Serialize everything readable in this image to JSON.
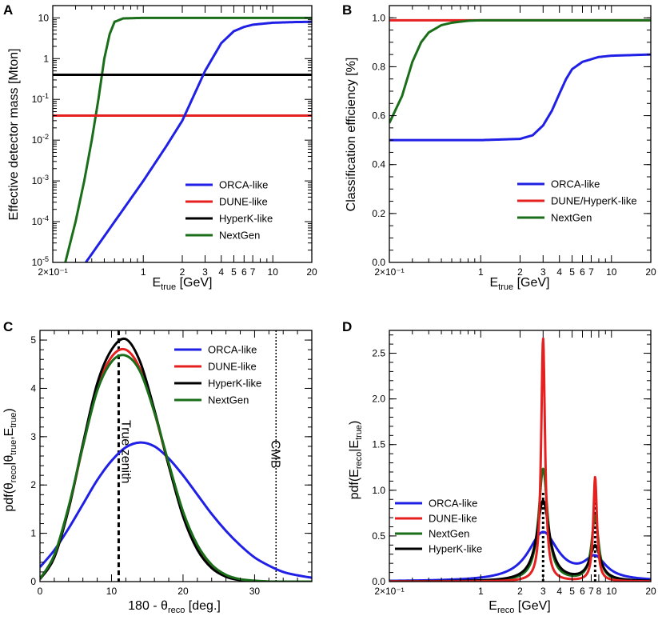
{
  "chart_data": [
    {
      "panel": "A",
      "type": "line",
      "xlabel": "E",
      "xlabel_sub": "true",
      "xlabel_unit": "[GeV]",
      "ylabel": "Effective detector mass [Mton]",
      "xscale": "log",
      "yscale": "log",
      "xlim": [
        0.2,
        20
      ],
      "ylim": [
        1e-05,
        20
      ],
      "x_ticks": [
        {
          "v": 0.2,
          "t": "2×10⁻¹"
        },
        {
          "v": 1,
          "t": "1"
        },
        {
          "v": 2,
          "t": "2"
        },
        {
          "v": 3,
          "t": "3"
        },
        {
          "v": 4,
          "t": "4"
        },
        {
          "v": 5,
          "t": "5"
        },
        {
          "v": 6,
          "t": "6"
        },
        {
          "v": 7,
          "t": "7"
        },
        {
          "v": 10,
          "t": "10"
        },
        {
          "v": 20,
          "t": "20"
        }
      ],
      "y_ticks": [
        {
          "v": 1e-05,
          "b": "10",
          "e": "-5"
        },
        {
          "v": 0.0001,
          "b": "10",
          "e": "-4"
        },
        {
          "v": 0.001,
          "b": "10",
          "e": "-3"
        },
        {
          "v": 0.01,
          "b": "10",
          "e": "-2"
        },
        {
          "v": 0.1,
          "b": "10",
          "e": "-1"
        },
        {
          "v": 1,
          "t": "1"
        },
        {
          "v": 10,
          "t": "10"
        }
      ],
      "legend": {
        "position": "bottom-right",
        "entries": [
          {
            "name": "ORCA-like",
            "color": "#1f1fe6"
          },
          {
            "name": "DUNE-like",
            "color": "#e61f1f"
          },
          {
            "name": "HyperK-like",
            "color": "#000000"
          },
          {
            "name": "NextGen",
            "color": "#1a6e1a"
          }
        ]
      },
      "series": [
        {
          "name": "NextGen",
          "color": "#1a6e1a",
          "x": [
            0.25,
            0.3,
            0.35,
            0.4,
            0.45,
            0.5,
            0.55,
            0.6,
            0.7,
            1,
            2,
            20
          ],
          "y": [
            1e-05,
            0.0001,
            0.001,
            0.01,
            0.1,
            1,
            4,
            8,
            9.7,
            10,
            10,
            10
          ]
        },
        {
          "name": "HyperK-like",
          "color": "#000000",
          "x": [
            0.2,
            20
          ],
          "y": [
            0.4,
            0.4
          ]
        },
        {
          "name": "DUNE-like",
          "color": "#e61f1f",
          "x": [
            0.2,
            20
          ],
          "y": [
            0.04,
            0.04
          ]
        },
        {
          "name": "ORCA-like",
          "color": "#1f1fe6",
          "x": [
            0.36,
            0.7,
            1,
            1.5,
            2,
            3,
            4,
            5,
            6,
            7,
            10,
            15,
            20
          ],
          "y": [
            1e-05,
            0.0002,
            0.001,
            0.007,
            0.03,
            0.5,
            2.4,
            4.7,
            6,
            6.8,
            7.6,
            7.9,
            8
          ]
        }
      ]
    },
    {
      "panel": "B",
      "type": "line",
      "xlabel": "E",
      "xlabel_sub": "true",
      "xlabel_unit": "[GeV]",
      "ylabel": "Classification efficiency [%]",
      "xscale": "log",
      "yscale": "linear",
      "xlim": [
        0.2,
        20
      ],
      "ylim": [
        0,
        1.05
      ],
      "x_ticks": [
        {
          "v": 0.2,
          "t": "2×10⁻¹"
        },
        {
          "v": 1,
          "t": "1"
        },
        {
          "v": 2,
          "t": "2"
        },
        {
          "v": 3,
          "t": "3"
        },
        {
          "v": 4,
          "t": "4"
        },
        {
          "v": 5,
          "t": "5"
        },
        {
          "v": 6,
          "t": "6"
        },
        {
          "v": 7,
          "t": "7"
        },
        {
          "v": 10,
          "t": "10"
        },
        {
          "v": 20,
          "t": "20"
        }
      ],
      "y_ticks": [
        {
          "v": 0,
          "t": "0.0"
        },
        {
          "v": 0.2,
          "t": "0.2"
        },
        {
          "v": 0.4,
          "t": "0.4"
        },
        {
          "v": 0.6,
          "t": "0.6"
        },
        {
          "v": 0.8,
          "t": "0.8"
        },
        {
          "v": 1.0,
          "t": "1.0"
        }
      ],
      "legend": {
        "position": "bottom-right",
        "entries": [
          {
            "name": "ORCA-like",
            "color": "#1f1fe6"
          },
          {
            "name": "DUNE/HyperK-like",
            "color": "#e61f1f"
          },
          {
            "name": "NextGen",
            "color": "#1a6e1a"
          }
        ]
      },
      "series": [
        {
          "name": "DUNE/HyperK-like",
          "color": "#e61f1f",
          "x": [
            0.2,
            20
          ],
          "y": [
            0.99,
            0.99
          ]
        },
        {
          "name": "NextGen",
          "color": "#1a6e1a",
          "x": [
            0.2,
            0.25,
            0.3,
            0.35,
            0.4,
            0.5,
            0.6,
            0.8,
            1,
            2,
            20
          ],
          "y": [
            0.57,
            0.68,
            0.82,
            0.9,
            0.94,
            0.97,
            0.98,
            0.988,
            0.99,
            0.99,
            0.99
          ]
        },
        {
          "name": "ORCA-like",
          "color": "#1f1fe6",
          "x": [
            0.2,
            1,
            2,
            2.5,
            3,
            3.5,
            4,
            4.5,
            5,
            6,
            8,
            10,
            20
          ],
          "y": [
            0.5,
            0.5,
            0.505,
            0.52,
            0.56,
            0.62,
            0.69,
            0.75,
            0.79,
            0.82,
            0.84,
            0.845,
            0.85
          ]
        }
      ]
    },
    {
      "panel": "C",
      "type": "line",
      "xlabel": "180 - θ",
      "xlabel_sub": "reco",
      "xlabel_unit": "[deg.]",
      "ylabel": "pdf(θ",
      "ylabel_sub1": "reco",
      "ylabel_mid": "|θ",
      "ylabel_sub2": "true",
      "ylabel_mid2": ",E",
      "ylabel_sub3": "true",
      "ylabel_end": ")",
      "xscale": "linear",
      "yscale": "linear",
      "xlim": [
        0,
        38
      ],
      "ylim": [
        0,
        5.2
      ],
      "x_ticks": [
        {
          "v": 0,
          "t": "0"
        },
        {
          "v": 10,
          "t": "10"
        },
        {
          "v": 20,
          "t": "20"
        },
        {
          "v": 30,
          "t": "30"
        }
      ],
      "y_ticks": [
        {
          "v": 0,
          "t": "0"
        },
        {
          "v": 1,
          "t": "1"
        },
        {
          "v": 2,
          "t": "2"
        },
        {
          "v": 3,
          "t": "3"
        },
        {
          "v": 4,
          "t": "4"
        },
        {
          "v": 5,
          "t": "5"
        }
      ],
      "legend": {
        "position": "top-right",
        "entries": [
          {
            "name": "ORCA-like",
            "color": "#1f1fe6"
          },
          {
            "name": "DUNE-like",
            "color": "#e61f1f"
          },
          {
            "name": "HyperK-like",
            "color": "#000000"
          },
          {
            "name": "NextGen",
            "color": "#1a6e1a"
          }
        ]
      },
      "annotations": [
        {
          "text": "True zenith",
          "x": 11,
          "style": "dashed-thick"
        },
        {
          "text": "CMB",
          "x": 33,
          "style": "dotted"
        }
      ],
      "series": [
        {
          "name": "ORCA-like",
          "color": "#1f1fe6",
          "x": [
            0,
            2,
            4,
            6,
            8,
            10,
            12,
            14,
            16,
            18,
            20,
            22,
            24,
            26,
            28,
            30,
            32,
            34,
            36,
            38
          ],
          "y": [
            0.3,
            0.65,
            1.1,
            1.6,
            2.1,
            2.5,
            2.78,
            2.88,
            2.8,
            2.55,
            2.2,
            1.8,
            1.4,
            1.05,
            0.75,
            0.5,
            0.33,
            0.2,
            0.13,
            0.08
          ]
        },
        {
          "name": "DUNE-like",
          "color": "#e61f1f",
          "x": [
            0,
            2,
            4,
            6,
            8,
            10,
            12,
            14,
            16,
            18,
            20,
            22,
            24,
            26,
            28,
            30,
            32,
            34,
            36,
            38
          ],
          "y": [
            0.05,
            0.5,
            1.5,
            2.8,
            4.0,
            4.65,
            4.8,
            4.4,
            3.5,
            2.4,
            1.4,
            0.72,
            0.32,
            0.12,
            0.04,
            0.01,
            0,
            0,
            0,
            0
          ]
        },
        {
          "name": "HyperK-like",
          "color": "#000000",
          "x": [
            0,
            2,
            4,
            6,
            8,
            10,
            12,
            14,
            16,
            18,
            20,
            22,
            24,
            26,
            28,
            30,
            32,
            34,
            36,
            38
          ],
          "y": [
            0.05,
            0.5,
            1.5,
            2.85,
            4.1,
            4.8,
            5.02,
            4.55,
            3.55,
            2.4,
            1.35,
            0.66,
            0.28,
            0.1,
            0.03,
            0.01,
            0,
            0,
            0,
            0
          ]
        },
        {
          "name": "NextGen",
          "color": "#1a6e1a",
          "x": [
            0,
            2,
            4,
            6,
            8,
            10,
            12,
            14,
            16,
            18,
            20,
            22,
            24,
            26,
            28,
            30,
            32,
            34,
            36,
            38
          ],
          "y": [
            0.06,
            0.55,
            1.55,
            2.8,
            3.95,
            4.55,
            4.68,
            4.35,
            3.5,
            2.45,
            1.45,
            0.76,
            0.35,
            0.14,
            0.05,
            0.02,
            0,
            0,
            0,
            0
          ]
        }
      ]
    },
    {
      "panel": "D",
      "type": "line",
      "xlabel": "E",
      "xlabel_sub": "reco",
      "xlabel_unit": "[GeV]",
      "ylabel": "pdf(E",
      "ylabel_sub1": "reco",
      "ylabel_mid": "|E",
      "ylabel_sub2": "true",
      "ylabel_end": ")",
      "xscale": "log",
      "yscale": "linear",
      "xlim": [
        0.2,
        20
      ],
      "ylim": [
        0,
        2.75
      ],
      "x_ticks": [
        {
          "v": 0.2,
          "t": "2×10⁻¹"
        },
        {
          "v": 1,
          "t": "1"
        },
        {
          "v": 2,
          "t": "2"
        },
        {
          "v": 3,
          "t": "3"
        },
        {
          "v": 4,
          "t": "4"
        },
        {
          "v": 5,
          "t": "5"
        },
        {
          "v": 6,
          "t": "6"
        },
        {
          "v": 7,
          "t": "7"
        },
        {
          "v": 8,
          "t": "8"
        },
        {
          "v": 10,
          "t": "10"
        },
        {
          "v": 20,
          "t": "20"
        }
      ],
      "y_ticks": [
        {
          "v": 0,
          "t": "0.0"
        },
        {
          "v": 0.5,
          "t": "0.5"
        },
        {
          "v": 1,
          "t": "1.0"
        },
        {
          "v": 1.5,
          "t": "1.5"
        },
        {
          "v": 2,
          "t": "2.0"
        },
        {
          "v": 2.5,
          "t": "2.5"
        }
      ],
      "legend": {
        "position": "middle-left",
        "entries": [
          {
            "name": "ORCA-like",
            "color": "#1f1fe6"
          },
          {
            "name": "DUNE-like",
            "color": "#e61f1f"
          },
          {
            "name": "NextGen",
            "color": "#1a6e1a"
          },
          {
            "name": "HyperK-like",
            "color": "#000000"
          }
        ]
      },
      "true_energies": [
        3,
        7.5
      ],
      "series": [
        {
          "name": "ORCA-like",
          "color": "#1f1fe6",
          "peaks": [
            {
              "e": 3,
              "h": 0.53,
              "w": 0.14
            },
            {
              "e": 7.5,
              "h": 0.23,
              "w": 0.1
            }
          ]
        },
        {
          "name": "NextGen",
          "color": "#1a6e1a",
          "peaks": [
            {
              "e": 3,
              "h": 1.23,
              "w": 0.042
            },
            {
              "e": 7.5,
              "h": 0.71,
              "w": 0.032
            }
          ]
        },
        {
          "name": "HyperK-like",
          "color": "#000000",
          "peaks": [
            {
              "e": 3,
              "h": 0.88,
              "w": 0.058
            },
            {
              "e": 7.5,
              "h": 0.38,
              "w": 0.05
            }
          ]
        },
        {
          "name": "DUNE-like",
          "color": "#e61f1f",
          "peaks": [
            {
              "e": 3,
              "h": 2.66,
              "w": 0.018
            },
            {
              "e": 7.5,
              "h": 1.14,
              "w": 0.017
            }
          ]
        }
      ]
    }
  ]
}
